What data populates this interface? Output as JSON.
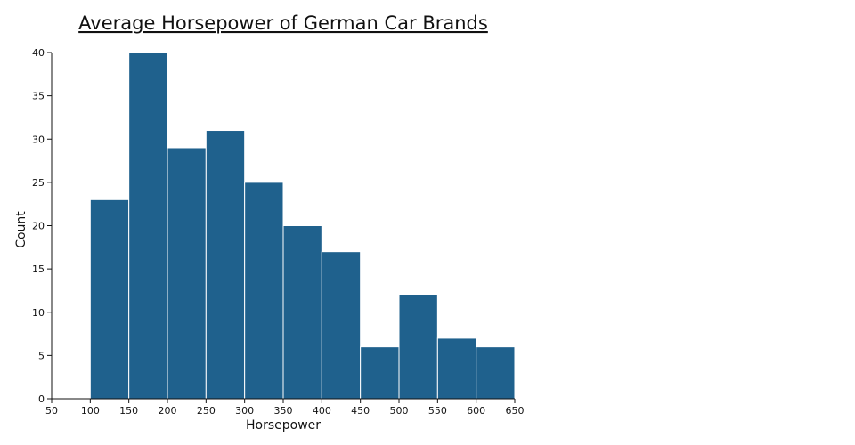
{
  "chart_data": {
    "type": "bar",
    "title": "Average Horsepower of German Car Brands",
    "xlabel": "Horsepower",
    "ylabel": "Count",
    "bin_width": 50,
    "bins": [
      {
        "x0": 100,
        "x1": 150,
        "count": 23
      },
      {
        "x0": 150,
        "x1": 200,
        "count": 40
      },
      {
        "x0": 200,
        "x1": 250,
        "count": 29
      },
      {
        "x0": 250,
        "x1": 300,
        "count": 31
      },
      {
        "x0": 300,
        "x1": 350,
        "count": 25
      },
      {
        "x0": 350,
        "x1": 400,
        "count": 20
      },
      {
        "x0": 400,
        "x1": 450,
        "count": 17
      },
      {
        "x0": 450,
        "x1": 500,
        "count": 6
      },
      {
        "x0": 500,
        "x1": 550,
        "count": 12
      },
      {
        "x0": 550,
        "x1": 600,
        "count": 7
      },
      {
        "x0": 600,
        "x1": 650,
        "count": 6
      }
    ],
    "xlim": [
      50,
      650
    ],
    "ylim": [
      0,
      40
    ],
    "xticks": [
      50,
      100,
      150,
      200,
      250,
      300,
      350,
      400,
      450,
      500,
      550,
      600,
      650
    ],
    "yticks": [
      0,
      5,
      10,
      15,
      20,
      25,
      30,
      35,
      40
    ],
    "bar_color": "#1f618d",
    "grid": false,
    "legend": "none"
  }
}
